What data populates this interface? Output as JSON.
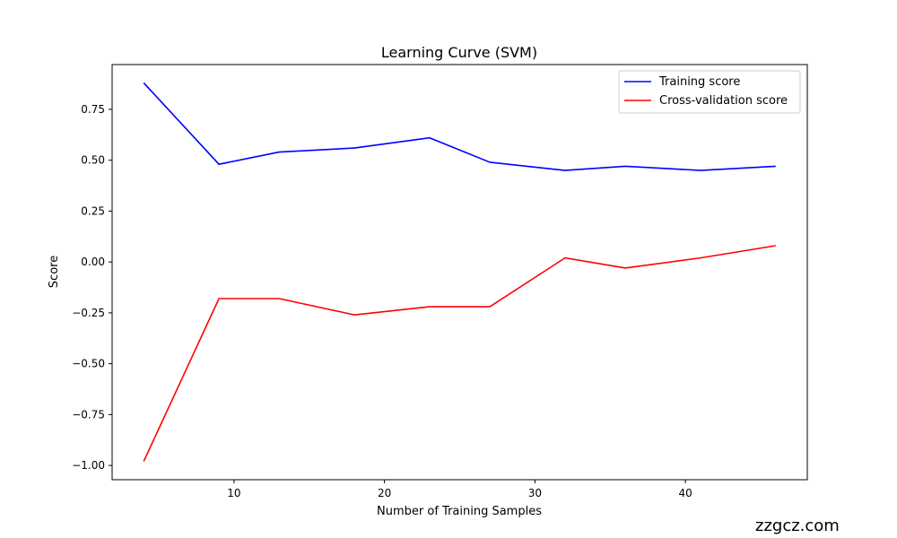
{
  "chart_data": {
    "type": "line",
    "title": "Learning Curve (SVM)",
    "xlabel": "Number of Training Samples",
    "ylabel": "Score",
    "xlim": [
      1.9,
      48.1
    ],
    "ylim": [
      -1.07,
      0.97
    ],
    "x_ticks": [
      10,
      20,
      30,
      40
    ],
    "y_ticks": [
      -1.0,
      -0.75,
      -0.5,
      -0.25,
      0.0,
      0.25,
      0.5,
      0.75
    ],
    "x_tick_labels": [
      "10",
      "20",
      "30",
      "40"
    ],
    "y_tick_labels": [
      "−1.00",
      "−0.75",
      "−0.50",
      "−0.25",
      "0.00",
      "0.25",
      "0.50",
      "0.75"
    ],
    "x": [
      4,
      9,
      13,
      18,
      23,
      27,
      32,
      36,
      41,
      46
    ],
    "series": [
      {
        "name": "Training score",
        "color": "#0000ff",
        "values": [
          0.88,
          0.48,
          0.54,
          0.56,
          0.61,
          0.49,
          0.45,
          0.47,
          0.45,
          0.47
        ]
      },
      {
        "name": "Cross-validation score",
        "color": "#ff0000",
        "values": [
          -0.98,
          -0.18,
          -0.18,
          -0.26,
          -0.22,
          -0.22,
          0.02,
          -0.03,
          0.02,
          0.08
        ]
      }
    ],
    "grid": false,
    "legend_position": "top-right"
  },
  "watermark": "zzgcz.com"
}
